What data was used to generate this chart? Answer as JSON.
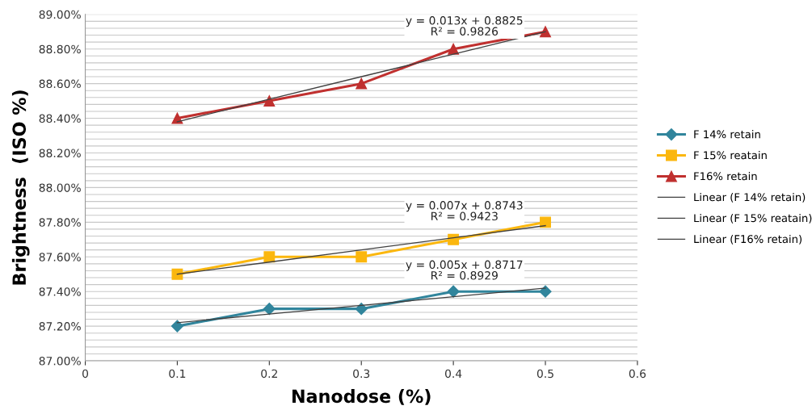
{
  "chart_data": {
    "type": "line",
    "xlabel": "Nanodose (%)",
    "ylabel": "Brightness  (ISO %)",
    "x": [
      0.1,
      0.2,
      0.3,
      0.4,
      0.5
    ],
    "series": [
      {
        "name": "F 14% retain",
        "color": "#31859c",
        "marker": "diamond",
        "values": [
          87.2,
          87.3,
          87.3,
          87.4,
          87.4
        ]
      },
      {
        "name": "F 15% reatain",
        "color": "#fbb70e",
        "marker": "square",
        "values": [
          87.5,
          87.6,
          87.6,
          87.7,
          87.8
        ]
      },
      {
        "name": "F16% retain",
        "color": "#c0302f",
        "marker": "triangle",
        "values": [
          88.4,
          88.5,
          88.6,
          88.8,
          88.9
        ]
      },
      {
        "name": "Linear (F 14% retain)",
        "color": "#404040",
        "marker": "none",
        "values": [
          87.22,
          87.27,
          87.32,
          87.37,
          87.42
        ]
      },
      {
        "name": "Linear (F 15% reatain)",
        "color": "#404040",
        "marker": "none",
        "values": [
          87.5,
          87.57,
          87.64,
          87.71,
          87.78
        ]
      },
      {
        "name": "Linear (F16% retain)",
        "color": "#404040",
        "marker": "none",
        "values": [
          88.38,
          88.51,
          88.64,
          88.77,
          88.9
        ]
      }
    ],
    "annotations": [
      "y = 0.005x + 0.8717\nR² = 0.8929",
      "y = 0.007x + 0.8743\nR² = 0.9423",
      "y = 0.013x + 0.8825\nR² = 0.9826"
    ],
    "xlim": [
      0,
      0.6
    ],
    "xticks": [
      0,
      0.1,
      0.2,
      0.3,
      0.4,
      0.5,
      0.6
    ],
    "ylim": [
      87.0,
      89.0
    ],
    "yticks": [
      {
        "value": 87.0,
        "label": "87.00%"
      },
      {
        "value": 87.04,
        "label": null
      },
      {
        "value": 87.08,
        "label": null
      },
      {
        "value": 87.12,
        "label": null
      },
      {
        "value": 87.16,
        "label": null
      },
      {
        "value": 87.2,
        "label": "87.20%"
      },
      {
        "value": 87.24,
        "label": null
      },
      {
        "value": 87.28,
        "label": null
      },
      {
        "value": 87.32,
        "label": null
      },
      {
        "value": 87.36,
        "label": null
      },
      {
        "value": 87.4,
        "label": "87.40%"
      },
      {
        "value": 87.44,
        "label": null
      },
      {
        "value": 87.48,
        "label": null
      },
      {
        "value": 87.52,
        "label": null
      },
      {
        "value": 87.56,
        "label": null
      },
      {
        "value": 87.6,
        "label": "87.60%"
      },
      {
        "value": 87.64,
        "label": null
      },
      {
        "value": 87.68,
        "label": null
      },
      {
        "value": 87.72,
        "label": null
      },
      {
        "value": 87.76,
        "label": null
      },
      {
        "value": 87.8,
        "label": "87.80%"
      },
      {
        "value": 87.84,
        "label": null
      },
      {
        "value": 87.88,
        "label": null
      },
      {
        "value": 87.92,
        "label": null
      },
      {
        "value": 87.96,
        "label": null
      },
      {
        "value": 88.0,
        "label": "88.00%"
      },
      {
        "value": 88.04,
        "label": null
      },
      {
        "value": 88.08,
        "label": null
      },
      {
        "value": 88.12,
        "label": null
      },
      {
        "value": 88.16,
        "label": null
      },
      {
        "value": 88.2,
        "label": "88.20%"
      },
      {
        "value": 88.24,
        "label": null
      },
      {
        "value": 88.28,
        "label": null
      },
      {
        "value": 88.32,
        "label": null
      },
      {
        "value": 88.36,
        "label": null
      },
      {
        "value": 88.4,
        "label": "88.40%"
      },
      {
        "value": 88.44,
        "label": null
      },
      {
        "value": 88.48,
        "label": null
      },
      {
        "value": 88.52,
        "label": null
      },
      {
        "value": 88.56,
        "label": null
      },
      {
        "value": 88.6,
        "label": "88.60%"
      },
      {
        "value": 88.64,
        "label": null
      },
      {
        "value": 88.68,
        "label": null
      },
      {
        "value": 88.72,
        "label": null
      },
      {
        "value": 88.76,
        "label": null
      },
      {
        "value": 88.8,
        "label": "88.80%"
      },
      {
        "value": 88.84,
        "label": null
      },
      {
        "value": 88.88,
        "label": null
      },
      {
        "value": 88.92,
        "label": null
      },
      {
        "value": 88.96,
        "label": null
      },
      {
        "value": 89.0,
        "label": "89.00%"
      }
    ],
    "grid": "y",
    "legend": "right"
  }
}
